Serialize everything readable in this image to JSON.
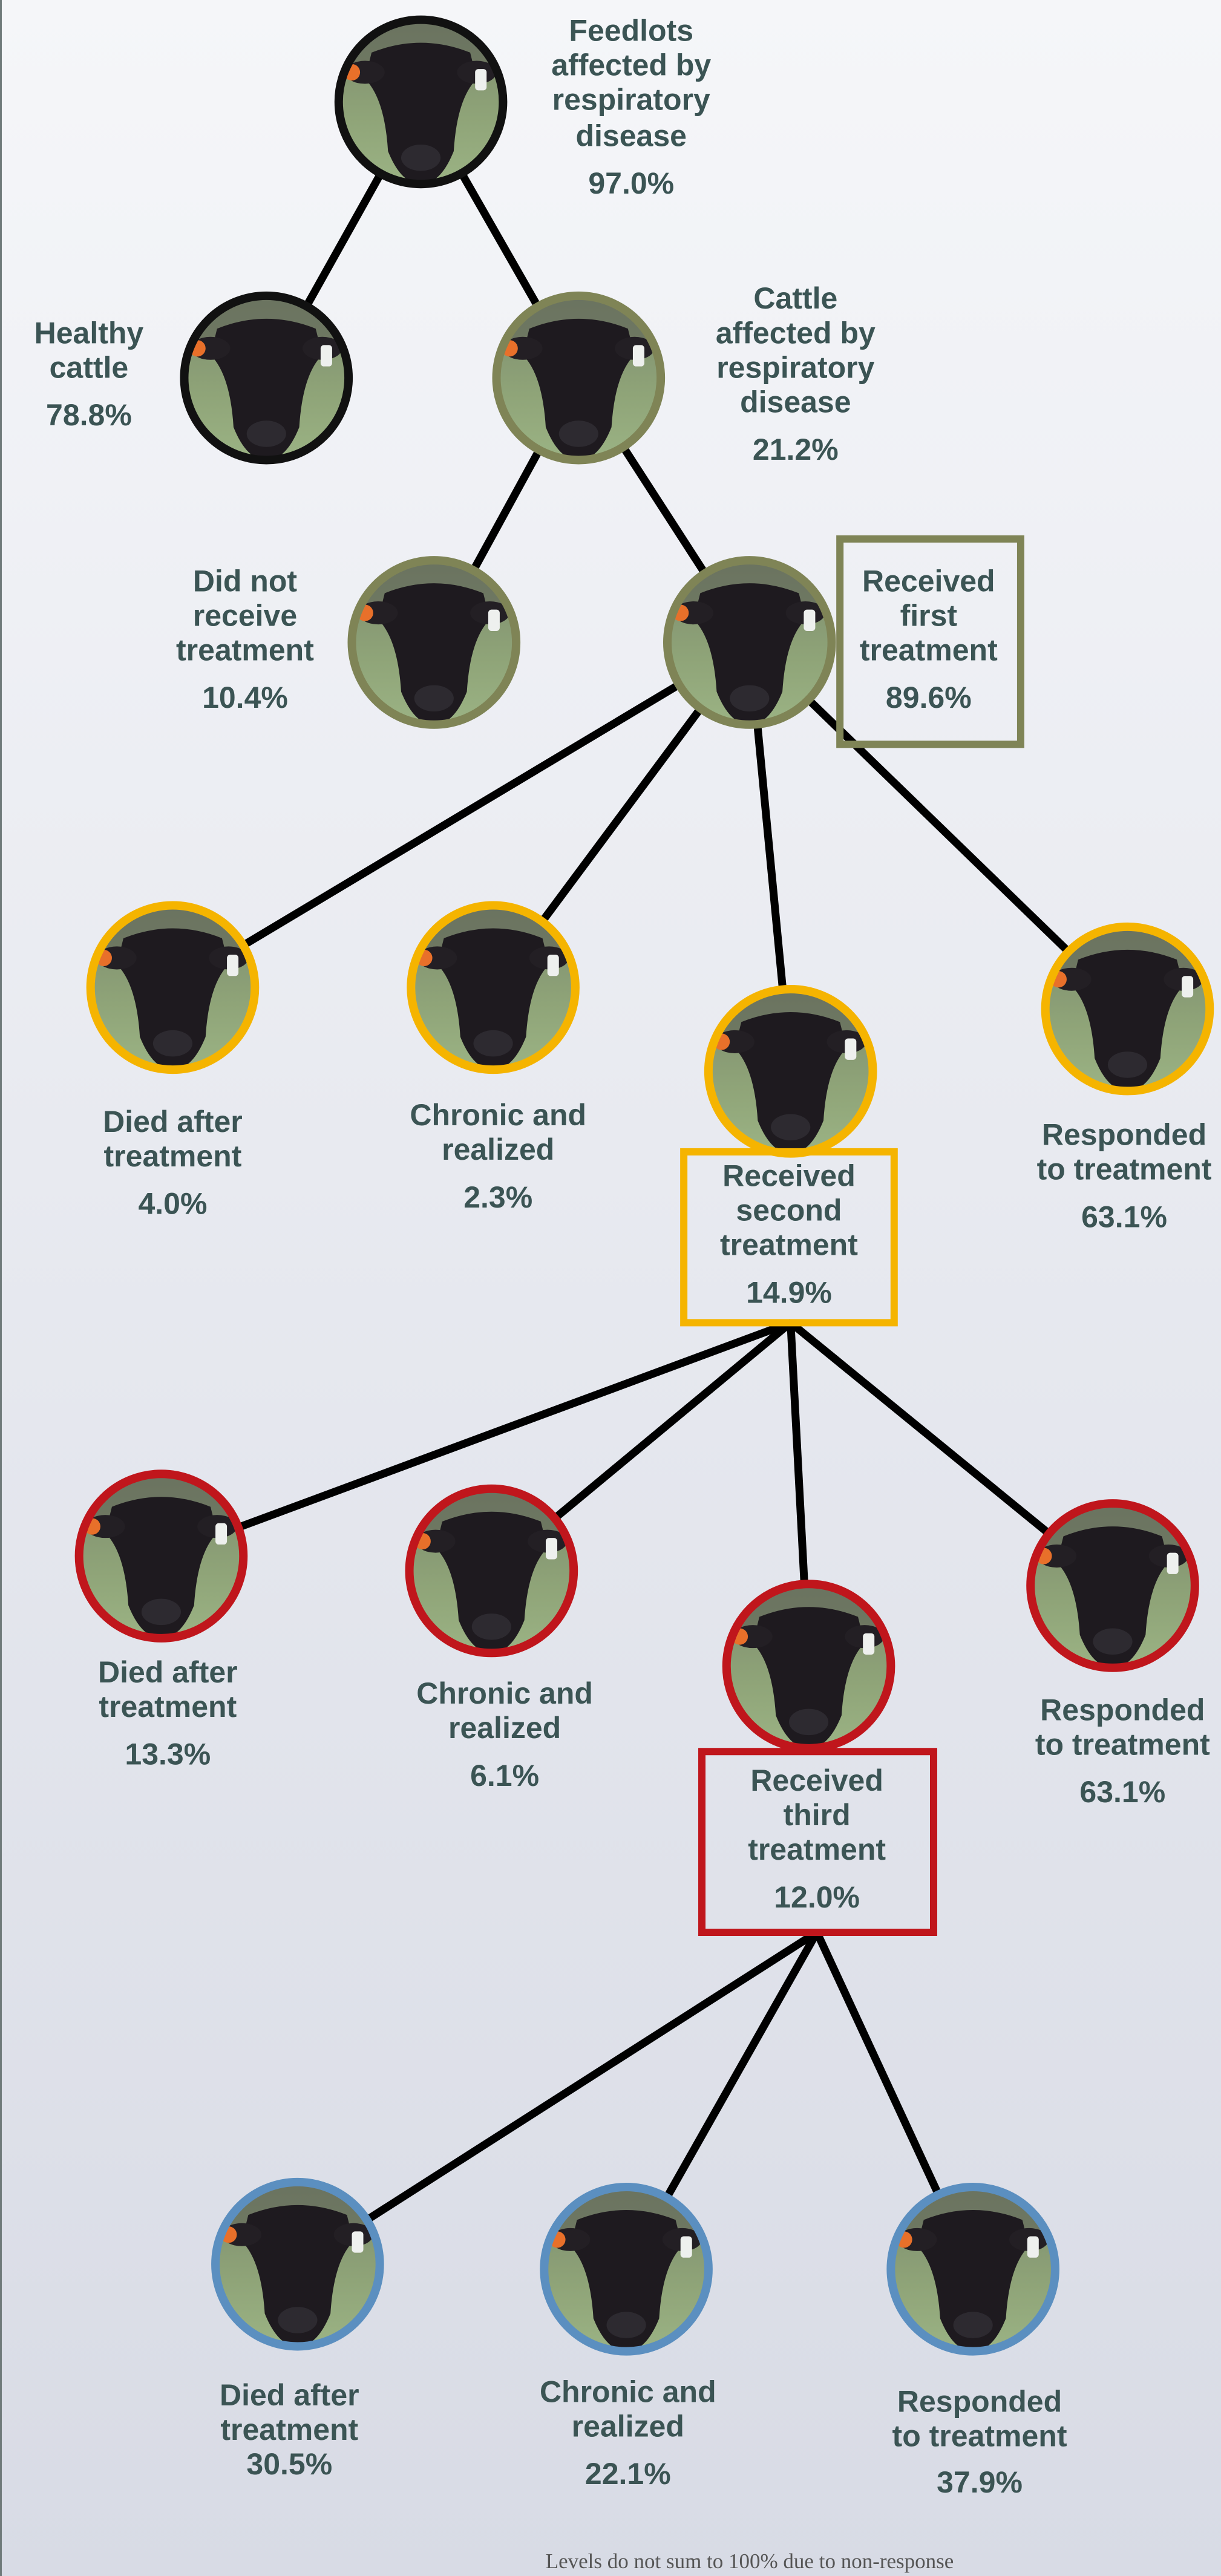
{
  "nodes": [
    {
      "label": [
        "Feedlots",
        "affected by",
        "respiratory",
        "disease"
      ],
      "value": "97.0%"
    },
    {
      "label": [
        "Healthy",
        "cattle"
      ],
      "value": "78.8%"
    },
    {
      "label": [
        "Cattle",
        "affected by",
        "respiratory",
        "disease"
      ],
      "value": "21.2%"
    },
    {
      "label": [
        "Did not",
        "receive",
        "treatment"
      ],
      "value": "10.4%"
    },
    {
      "label": [
        "Received",
        "first",
        "treatment"
      ],
      "value": "89.6%"
    },
    {
      "label": [
        "Died after",
        "treatment"
      ],
      "value": "4.0%"
    },
    {
      "label": [
        "Chronic and",
        "realized"
      ],
      "value": "2.3%"
    },
    {
      "label": [
        "Received",
        "second",
        "treatment"
      ],
      "value": "14.9%"
    },
    {
      "label": [
        "Responded",
        "to treatment"
      ],
      "value": "63.1%"
    },
    {
      "label": [
        "Died after",
        "treatment"
      ],
      "value": "13.3%"
    },
    {
      "label": [
        "Chronic and",
        "realized"
      ],
      "value": "6.1%"
    },
    {
      "label": [
        "Received",
        "third",
        "treatment"
      ],
      "value": "12.0%"
    },
    {
      "label": [
        "Responded",
        "to treatment"
      ],
      "value": "63.1%"
    },
    {
      "label": [
        "Died after",
        "treatment"
      ],
      "value": "30.5%"
    },
    {
      "label": [
        "Chronic and",
        "realized"
      ],
      "value": "22.1%"
    },
    {
      "label": [
        "Responded",
        "to treatment"
      ],
      "value": "37.9%"
    }
  ],
  "footnote": "Levels do not sum to 100% due to non-response"
}
